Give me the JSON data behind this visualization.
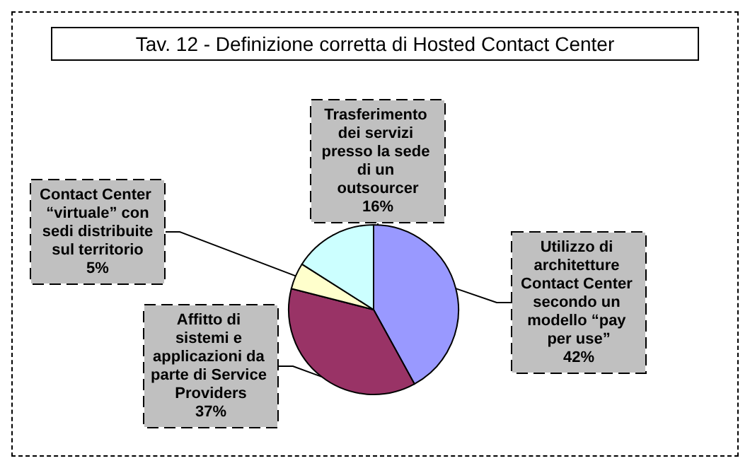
{
  "chart_data": {
    "type": "pie",
    "title": "Tav. 12 - Definizione corretta di Hosted Contact Center",
    "categories": [
      "Utilizzo di architetture Contact Center secondo un modello “pay per use”",
      "Affitto di sistemi e applicazioni da parte di Service Providers",
      "Contact Center “virtuale” con sedi distribuite sul territorio",
      "Trasferimento dei servizi presso la sede di un outsourcer"
    ],
    "values": [
      42,
      37,
      5,
      16
    ],
    "colors": [
      "#9999ff",
      "#993366",
      "#ffffcc",
      "#ccffff"
    ],
    "value_labels": [
      "42%",
      "37%",
      "5%",
      "16%"
    ],
    "legend": false
  }
}
